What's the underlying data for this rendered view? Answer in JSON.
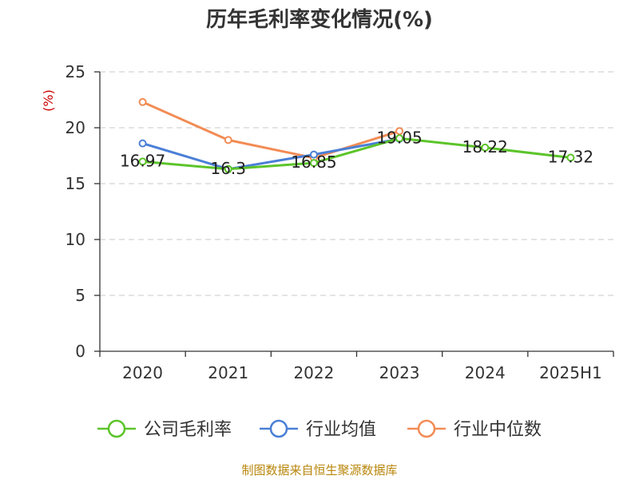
{
  "chart_data": {
    "type": "line",
    "title": "历年毛利率变化情况(%)",
    "ylabel": "(%)",
    "categories": [
      "2020",
      "2021",
      "2022",
      "2023",
      "2024",
      "2025H1"
    ],
    "ylim": [
      0,
      25
    ],
    "yticks": [
      "0",
      "5",
      "10",
      "15",
      "20",
      "25"
    ],
    "grid": true,
    "legend_position": "bottom",
    "series": [
      {
        "name": "公司毛利率",
        "color": "#5cc42a",
        "values": [
          16.97,
          16.3,
          16.85,
          19.05,
          18.22,
          17.32
        ],
        "labels": [
          "16.97",
          "16.3",
          "16.85",
          "19.05",
          "18.22",
          "17.32"
        ]
      },
      {
        "name": "行业均值",
        "color": "#4a7fd6",
        "values": [
          18.6,
          16.3,
          17.6,
          19.0,
          null,
          null
        ]
      },
      {
        "name": "行业中位数",
        "color": "#f28c55",
        "values": [
          22.3,
          18.9,
          17.3,
          19.7,
          null,
          null
        ]
      }
    ]
  },
  "source": "制图数据来自恒生聚源数据库"
}
